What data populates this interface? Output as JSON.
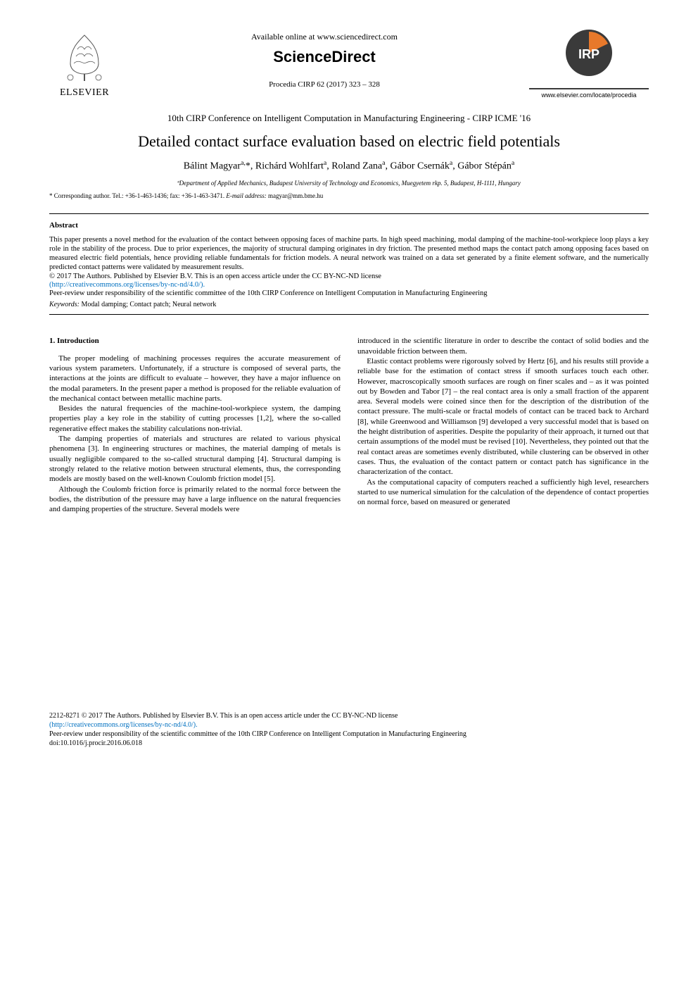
{
  "header": {
    "available_online": "Available online at www.sciencedirect.com",
    "brand": "ScienceDirect",
    "procedia": "Procedia CIRP 62 (2017) 323 – 328",
    "elsevier_name": "ELSEVIER",
    "cirp_url": "www.elsevier.com/locate/procedia",
    "cirp_label": "IRP"
  },
  "conference": "10th CIRP Conference on Intelligent Computation in Manufacturing Engineering - CIRP ICME '16",
  "title": "Detailed contact surface evaluation based on electric field potentials",
  "authors_html": "Bálint Magyar<sup>a,</sup>*, Richárd Wohlfart<sup>a</sup>, Roland Zana<sup>a</sup>, Gábor Csernák<sup>a</sup>, Gábor Stépán<sup>a</sup>",
  "affiliation": "ªDepartment of Applied Mechanics, Budapest University of Technology and Economics, Muegyetem rkp. 5, Budapest, H-1111, Hungary",
  "corresponding_prefix": "* Corresponding author. Tel.: +36-1-463-1436; fax: +36-1-463-3471. ",
  "corresponding_email_label": "E-mail address:",
  "corresponding_email": " magyar@mm.bme.hu",
  "abstract": {
    "heading": "Abstract",
    "body": "This paper presents a novel method for the evaluation of the contact between opposing faces of machine parts. In high speed machining, modal damping of the machine-tool-workpiece loop plays a key role in the stability of the process. Due to prior experiences, the majority of structural damping originates in dry friction. The presented method maps the contact patch among opposing faces based on measured electric field potentials, hence providing reliable fundamentals for friction models. A neural network was trained on a data set generated by a finite element software, and the numerically predicted contact patterns were validated by measurement results.",
    "copyright": "© 2017 The Authors. Published by Elsevier B.V. This is an open access article under the CC BY-NC-ND license",
    "license_url": "(http://creativecommons.org/licenses/by-nc-nd/4.0/).",
    "peer_review": "Peer-review under responsibility of the scientific committee of the 10th CIRP Conference on Intelligent Computation in Manufacturing Engineering",
    "keywords_label": "Keywords:",
    "keywords": " Modal damping; Contact patch; Neural network"
  },
  "body": {
    "section1_heading": "1. Introduction",
    "left_p1": "The proper modeling of machining processes requires the accurate measurement of various system parameters. Unfortunately, if a structure is composed of several parts, the interactions at the joints are difficult to evaluate – however, they have a major influence on the modal parameters. In the present paper a method is proposed for the reliable evaluation of the mechanical contact between metallic machine parts.",
    "left_p2": "Besides the natural frequencies of the machine-tool-workpiece system, the damping properties play a key role in the stability of cutting processes [1,2], where the so-called regenerative effect makes the stability calculations non-trivial.",
    "left_p3": "The damping properties of materials and structures are related to various physical phenomena [3]. In engineering structures or machines, the material damping of metals is usually negligible compared to the so-called structural damping [4]. Structural damping is strongly related to the relative motion between structural elements, thus, the corresponding models are mostly based on the well-known Coulomb friction model [5].",
    "left_p4": "Although the Coulomb friction force is primarily related to the normal force between the bodies, the distribution of the pressure may have a large influence on the natural frequencies and damping properties of the structure. Several models were",
    "right_p1": "introduced in the scientific literature in order to describe the contact of solid bodies and the unavoidable friction between them.",
    "right_p2": "Elastic contact problems were rigorously solved by Hertz [6], and his results still provide a reliable base for the estimation of contact stress if smooth surfaces touch each other. However, macroscopically smooth surfaces are rough on finer scales and – as it was pointed out by Bowden and Tabor [7] – the real contact area is only a small fraction of the apparent area. Several models were coined since then for the description of the distribution of the contact pressure. The multi-scale or fractal models of contact can be traced back to Archard [8], while Greenwood and Williamson [9] developed a very successful model that is based on the height distribution of asperities. Despite the popularity of their approach, it turned out that certain assumptions of the model must be revised [10]. Nevertheless, they pointed out that the real contact areas are sometimes evenly distributed, while clustering can be observed in other cases. Thus, the evaluation of the contact pattern or contact patch has significance in the characterization of the contact.",
    "right_p3": "As the computational capacity of computers reached a sufficiently high level, researchers started to use numerical simulation for the calculation of the dependence of contact properties on normal force, based on measured or generated"
  },
  "footer": {
    "copyright": "2212-8271 © 2017 The Authors. Published by Elsevier B.V. This is an open access article under the CC BY-NC-ND license",
    "license_url": "(http://creativecommons.org/licenses/by-nc-nd/4.0/).",
    "peer_review": "Peer-review under responsibility of the scientific committee of the 10th CIRP Conference on Intelligent Computation in Manufacturing Engineering",
    "doi": "doi:10.1016/j.procir.2016.06.018"
  },
  "colors": {
    "text": "#000000",
    "link": "#0070c0",
    "background": "#ffffff",
    "cirp_dark": "#3a3a3a",
    "cirp_orange": "#e8792b"
  }
}
